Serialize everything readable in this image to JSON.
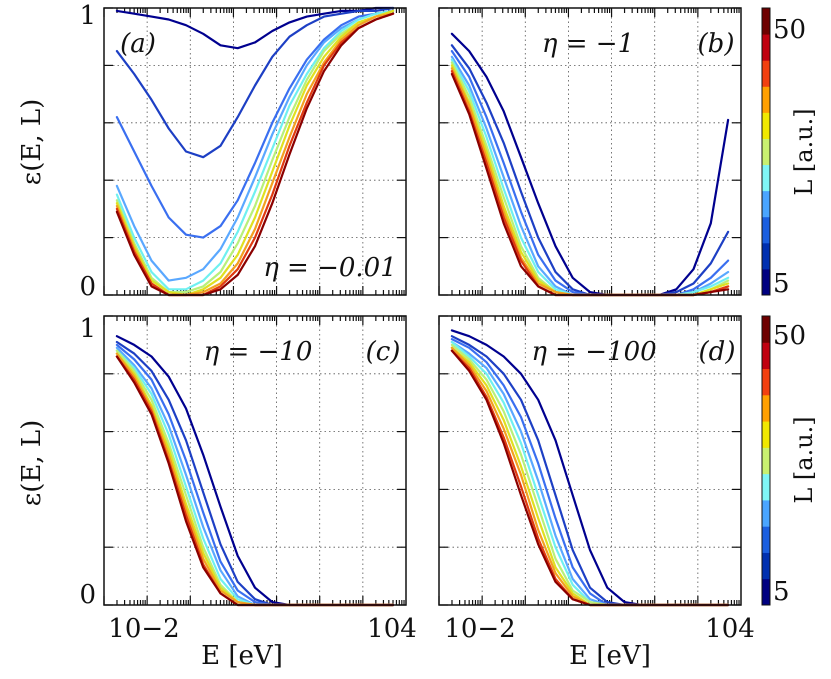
{
  "chart_data": [
    {
      "type": "line",
      "panel_label": "(a)",
      "eta_label": "η = −0.01",
      "xlabel": "",
      "ylabel": "ε(E, L)",
      "x_axis": "log10 E [eV]",
      "xlim": [
        -3,
        4
      ],
      "ylim": [
        0,
        1
      ],
      "x_tick_labels": [],
      "y_tick_labels": [
        "0",
        "1"
      ],
      "colorbar": false,
      "series_param_L": [
        5,
        10,
        15,
        20,
        25,
        30,
        35,
        40,
        45,
        50
      ],
      "series_x": [
        -2.7,
        -2.3,
        -1.9,
        -1.5,
        -1.1,
        -0.7,
        -0.3,
        0.1,
        0.5,
        0.9,
        1.3,
        1.7,
        2.1,
        2.5,
        2.9,
        3.3,
        3.7
      ],
      "series": [
        {
          "name": "L=5",
          "values": [
            0.99,
            0.98,
            0.97,
            0.96,
            0.94,
            0.91,
            0.87,
            0.86,
            0.88,
            0.92,
            0.95,
            0.97,
            0.98,
            0.99,
            0.99,
            1.0,
            1.0
          ]
        },
        {
          "name": "L=10",
          "values": [
            0.85,
            0.77,
            0.68,
            0.58,
            0.5,
            0.48,
            0.52,
            0.62,
            0.73,
            0.83,
            0.9,
            0.94,
            0.97,
            0.98,
            0.99,
            0.99,
            1.0
          ]
        },
        {
          "name": "L=15",
          "values": [
            0.62,
            0.5,
            0.38,
            0.27,
            0.21,
            0.2,
            0.24,
            0.33,
            0.46,
            0.6,
            0.72,
            0.82,
            0.89,
            0.94,
            0.97,
            0.98,
            0.99
          ]
        },
        {
          "name": "L=20",
          "values": [
            0.38,
            0.24,
            0.12,
            0.05,
            0.06,
            0.09,
            0.16,
            0.27,
            0.41,
            0.56,
            0.69,
            0.8,
            0.88,
            0.93,
            0.96,
            0.98,
            0.99
          ]
        },
        {
          "name": "L=25",
          "values": [
            0.35,
            0.2,
            0.08,
            0.02,
            0.02,
            0.05,
            0.11,
            0.22,
            0.36,
            0.51,
            0.66,
            0.77,
            0.86,
            0.92,
            0.96,
            0.98,
            0.99
          ]
        },
        {
          "name": "L=30",
          "values": [
            0.33,
            0.18,
            0.06,
            0.01,
            0.01,
            0.03,
            0.08,
            0.18,
            0.31,
            0.47,
            0.62,
            0.75,
            0.85,
            0.91,
            0.95,
            0.97,
            0.99
          ]
        },
        {
          "name": "L=35",
          "values": [
            0.32,
            0.17,
            0.05,
            0.01,
            0.0,
            0.02,
            0.06,
            0.14,
            0.27,
            0.43,
            0.59,
            0.73,
            0.83,
            0.9,
            0.95,
            0.97,
            0.99
          ]
        },
        {
          "name": "L=40",
          "values": [
            0.31,
            0.16,
            0.04,
            0.0,
            0.0,
            0.01,
            0.04,
            0.11,
            0.23,
            0.39,
            0.55,
            0.7,
            0.81,
            0.89,
            0.94,
            0.97,
            0.98
          ]
        },
        {
          "name": "L=45",
          "values": [
            0.3,
            0.15,
            0.04,
            0.0,
            0.0,
            0.0,
            0.03,
            0.09,
            0.2,
            0.35,
            0.52,
            0.67,
            0.8,
            0.88,
            0.93,
            0.96,
            0.98
          ]
        },
        {
          "name": "L=50",
          "values": [
            0.29,
            0.14,
            0.03,
            0.0,
            0.0,
            0.0,
            0.02,
            0.07,
            0.17,
            0.32,
            0.49,
            0.65,
            0.78,
            0.87,
            0.93,
            0.96,
            0.98
          ]
        }
      ]
    },
    {
      "type": "line",
      "panel_label": "(b)",
      "eta_label": "η = −1",
      "xlabel": "",
      "ylabel": "",
      "x_axis": "log10 E [eV]",
      "xlim": [
        -3,
        4
      ],
      "ylim": [
        0,
        1
      ],
      "x_tick_labels": [],
      "y_tick_labels": [],
      "colorbar": true,
      "colorbar_label": "L [a.u.]",
      "colorbar_ticks": [
        "5",
        "50"
      ],
      "series_param_L": [
        5,
        10,
        15,
        20,
        25,
        30,
        35,
        40,
        45,
        50
      ],
      "series_x": [
        -2.7,
        -2.3,
        -1.9,
        -1.5,
        -1.1,
        -0.7,
        -0.3,
        0.1,
        0.5,
        0.9,
        1.3,
        1.7,
        2.1,
        2.5,
        2.9,
        3.3,
        3.7
      ],
      "series": [
        {
          "name": "L=5",
          "values": [
            0.91,
            0.85,
            0.76,
            0.64,
            0.48,
            0.32,
            0.17,
            0.06,
            0.01,
            0.0,
            0.0,
            0.0,
            0.0,
            0.02,
            0.09,
            0.25,
            0.61
          ]
        },
        {
          "name": "L=10",
          "values": [
            0.87,
            0.79,
            0.67,
            0.53,
            0.36,
            0.2,
            0.08,
            0.02,
            0.0,
            0.0,
            0.0,
            0.0,
            0.0,
            0.01,
            0.04,
            0.11,
            0.22
          ]
        },
        {
          "name": "L=15",
          "values": [
            0.85,
            0.76,
            0.62,
            0.46,
            0.29,
            0.14,
            0.05,
            0.01,
            0.0,
            0.0,
            0.0,
            0.0,
            0.0,
            0.0,
            0.02,
            0.06,
            0.12
          ]
        },
        {
          "name": "L=20",
          "values": [
            0.83,
            0.73,
            0.58,
            0.41,
            0.24,
            0.1,
            0.03,
            0.0,
            0.0,
            0.0,
            0.0,
            0.0,
            0.0,
            0.0,
            0.01,
            0.04,
            0.08
          ]
        },
        {
          "name": "L=25",
          "values": [
            0.82,
            0.71,
            0.55,
            0.37,
            0.2,
            0.08,
            0.02,
            0.0,
            0.0,
            0.0,
            0.0,
            0.0,
            0.0,
            0.0,
            0.01,
            0.03,
            0.06
          ]
        },
        {
          "name": "L=30",
          "values": [
            0.81,
            0.69,
            0.52,
            0.34,
            0.17,
            0.06,
            0.01,
            0.0,
            0.0,
            0.0,
            0.0,
            0.0,
            0.0,
            0.0,
            0.0,
            0.02,
            0.05
          ]
        },
        {
          "name": "L=35",
          "values": [
            0.8,
            0.67,
            0.5,
            0.31,
            0.15,
            0.05,
            0.01,
            0.0,
            0.0,
            0.0,
            0.0,
            0.0,
            0.0,
            0.0,
            0.0,
            0.02,
            0.04
          ]
        },
        {
          "name": "L=40",
          "values": [
            0.79,
            0.66,
            0.48,
            0.29,
            0.13,
            0.04,
            0.01,
            0.0,
            0.0,
            0.0,
            0.0,
            0.0,
            0.0,
            0.0,
            0.0,
            0.01,
            0.03
          ]
        },
        {
          "name": "L=45",
          "values": [
            0.78,
            0.64,
            0.46,
            0.27,
            0.12,
            0.03,
            0.0,
            0.0,
            0.0,
            0.0,
            0.0,
            0.0,
            0.0,
            0.0,
            0.0,
            0.01,
            0.03
          ]
        },
        {
          "name": "L=50",
          "values": [
            0.77,
            0.63,
            0.44,
            0.25,
            0.1,
            0.03,
            0.0,
            0.0,
            0.0,
            0.0,
            0.0,
            0.0,
            0.0,
            0.0,
            0.0,
            0.01,
            0.02
          ]
        }
      ]
    },
    {
      "type": "line",
      "panel_label": "(c)",
      "eta_label": "η = −10",
      "xlabel": "E [eV]",
      "ylabel": "ε(E, L)",
      "x_axis": "log10 E [eV]",
      "xlim": [
        -3,
        4
      ],
      "ylim": [
        0,
        1
      ],
      "x_tick_labels": [
        "10−2",
        "104"
      ],
      "y_tick_labels": [
        "0",
        "1"
      ],
      "colorbar": false,
      "series_param_L": [
        5,
        10,
        15,
        20,
        25,
        30,
        35,
        40,
        45,
        50
      ],
      "series_x": [
        -2.7,
        -2.3,
        -1.9,
        -1.5,
        -1.1,
        -0.7,
        -0.3,
        0.1,
        0.5,
        0.9,
        1.3,
        1.7,
        2.1,
        2.5,
        2.9,
        3.3,
        3.7
      ],
      "series": [
        {
          "name": "L=5",
          "values": [
            0.93,
            0.9,
            0.86,
            0.79,
            0.68,
            0.52,
            0.34,
            0.17,
            0.06,
            0.01,
            0.0,
            0.0,
            0.0,
            0.0,
            0.0,
            0.0,
            0.0
          ]
        },
        {
          "name": "L=10",
          "values": [
            0.91,
            0.87,
            0.81,
            0.71,
            0.57,
            0.39,
            0.21,
            0.08,
            0.02,
            0.0,
            0.0,
            0.0,
            0.0,
            0.0,
            0.0,
            0.0,
            0.0
          ]
        },
        {
          "name": "L=15",
          "values": [
            0.9,
            0.85,
            0.78,
            0.66,
            0.5,
            0.32,
            0.15,
            0.05,
            0.01,
            0.0,
            0.0,
            0.0,
            0.0,
            0.0,
            0.0,
            0.0,
            0.0
          ]
        },
        {
          "name": "L=20",
          "values": [
            0.89,
            0.83,
            0.75,
            0.62,
            0.45,
            0.27,
            0.12,
            0.03,
            0.0,
            0.0,
            0.0,
            0.0,
            0.0,
            0.0,
            0.0,
            0.0,
            0.0
          ]
        },
        {
          "name": "L=25",
          "values": [
            0.88,
            0.82,
            0.73,
            0.59,
            0.41,
            0.23,
            0.09,
            0.02,
            0.0,
            0.0,
            0.0,
            0.0,
            0.0,
            0.0,
            0.0,
            0.0,
            0.0
          ]
        },
        {
          "name": "L=30",
          "values": [
            0.88,
            0.81,
            0.71,
            0.56,
            0.38,
            0.2,
            0.07,
            0.01,
            0.0,
            0.0,
            0.0,
            0.0,
            0.0,
            0.0,
            0.0,
            0.0,
            0.0
          ]
        },
        {
          "name": "L=35",
          "values": [
            0.87,
            0.8,
            0.69,
            0.54,
            0.35,
            0.18,
            0.06,
            0.01,
            0.0,
            0.0,
            0.0,
            0.0,
            0.0,
            0.0,
            0.0,
            0.0,
            0.0
          ]
        },
        {
          "name": "L=40",
          "values": [
            0.87,
            0.79,
            0.68,
            0.52,
            0.33,
            0.16,
            0.05,
            0.01,
            0.0,
            0.0,
            0.0,
            0.0,
            0.0,
            0.0,
            0.0,
            0.0,
            0.0
          ]
        },
        {
          "name": "L=45",
          "values": [
            0.86,
            0.78,
            0.67,
            0.5,
            0.31,
            0.14,
            0.04,
            0.0,
            0.0,
            0.0,
            0.0,
            0.0,
            0.0,
            0.0,
            0.0,
            0.0,
            0.0
          ]
        },
        {
          "name": "L=50",
          "values": [
            0.86,
            0.77,
            0.66,
            0.49,
            0.29,
            0.13,
            0.04,
            0.0,
            0.0,
            0.0,
            0.0,
            0.0,
            0.0,
            0.0,
            0.0,
            0.0,
            0.0
          ]
        }
      ]
    },
    {
      "type": "line",
      "panel_label": "(d)",
      "eta_label": "η = −100",
      "xlabel": "E [eV]",
      "ylabel": "",
      "x_axis": "log10 E [eV]",
      "xlim": [
        -3,
        4
      ],
      "ylim": [
        0,
        1
      ],
      "x_tick_labels": [
        "10−2",
        "104"
      ],
      "y_tick_labels": [],
      "colorbar": true,
      "colorbar_label": "L [a.u.]",
      "colorbar_ticks": [
        "5",
        "50"
      ],
      "series_param_L": [
        5,
        10,
        15,
        20,
        25,
        30,
        35,
        40,
        45,
        50
      ],
      "series_x": [
        -2.7,
        -2.3,
        -1.9,
        -1.5,
        -1.1,
        -0.7,
        -0.3,
        0.1,
        0.5,
        0.9,
        1.3,
        1.7,
        2.1,
        2.5,
        2.9,
        3.3,
        3.7
      ],
      "series": [
        {
          "name": "L=5",
          "values": [
            0.95,
            0.93,
            0.9,
            0.86,
            0.8,
            0.71,
            0.57,
            0.38,
            0.19,
            0.06,
            0.01,
            0.0,
            0.0,
            0.0,
            0.0,
            0.0,
            0.0
          ]
        },
        {
          "name": "L=10",
          "values": [
            0.93,
            0.9,
            0.86,
            0.8,
            0.71,
            0.57,
            0.38,
            0.19,
            0.06,
            0.01,
            0.0,
            0.0,
            0.0,
            0.0,
            0.0,
            0.0,
            0.0
          ]
        },
        {
          "name": "L=15",
          "values": [
            0.92,
            0.89,
            0.84,
            0.76,
            0.65,
            0.49,
            0.3,
            0.13,
            0.04,
            0.0,
            0.0,
            0.0,
            0.0,
            0.0,
            0.0,
            0.0,
            0.0
          ]
        },
        {
          "name": "L=20",
          "values": [
            0.91,
            0.87,
            0.82,
            0.73,
            0.6,
            0.43,
            0.24,
            0.09,
            0.02,
            0.0,
            0.0,
            0.0,
            0.0,
            0.0,
            0.0,
            0.0,
            0.0
          ]
        },
        {
          "name": "L=25",
          "values": [
            0.91,
            0.86,
            0.8,
            0.7,
            0.56,
            0.38,
            0.2,
            0.07,
            0.01,
            0.0,
            0.0,
            0.0,
            0.0,
            0.0,
            0.0,
            0.0,
            0.0
          ]
        },
        {
          "name": "L=30",
          "values": [
            0.9,
            0.85,
            0.78,
            0.67,
            0.52,
            0.34,
            0.16,
            0.05,
            0.01,
            0.0,
            0.0,
            0.0,
            0.0,
            0.0,
            0.0,
            0.0,
            0.0
          ]
        },
        {
          "name": "L=35",
          "values": [
            0.89,
            0.84,
            0.76,
            0.64,
            0.48,
            0.3,
            0.13,
            0.04,
            0.0,
            0.0,
            0.0,
            0.0,
            0.0,
            0.0,
            0.0,
            0.0,
            0.0
          ]
        },
        {
          "name": "L=40",
          "values": [
            0.89,
            0.83,
            0.74,
            0.61,
            0.45,
            0.26,
            0.11,
            0.03,
            0.0,
            0.0,
            0.0,
            0.0,
            0.0,
            0.0,
            0.0,
            0.0,
            0.0
          ]
        },
        {
          "name": "L=45",
          "values": [
            0.88,
            0.82,
            0.72,
            0.58,
            0.41,
            0.23,
            0.09,
            0.02,
            0.0,
            0.0,
            0.0,
            0.0,
            0.0,
            0.0,
            0.0,
            0.0,
            0.0
          ]
        },
        {
          "name": "L=50",
          "values": [
            0.88,
            0.81,
            0.71,
            0.56,
            0.38,
            0.21,
            0.08,
            0.02,
            0.0,
            0.0,
            0.0,
            0.0,
            0.0,
            0.0,
            0.0,
            0.0,
            0.0
          ]
        }
      ]
    }
  ],
  "palette": {
    "series_colors": [
      "#00008f",
      "#1d3fc4",
      "#3a6ff0",
      "#5aa8ff",
      "#6ff0f0",
      "#b8f07a",
      "#e0e020",
      "#f3a020",
      "#e03a10",
      "#8b0000"
    ],
    "colorbar_steps": [
      "#000080",
      "#0030b0",
      "#1b5fe0",
      "#4aa5ff",
      "#7ff5f5",
      "#c8f070",
      "#f0e800",
      "#ffa000",
      "#f24010",
      "#c00010",
      "#6e0000"
    ]
  }
}
